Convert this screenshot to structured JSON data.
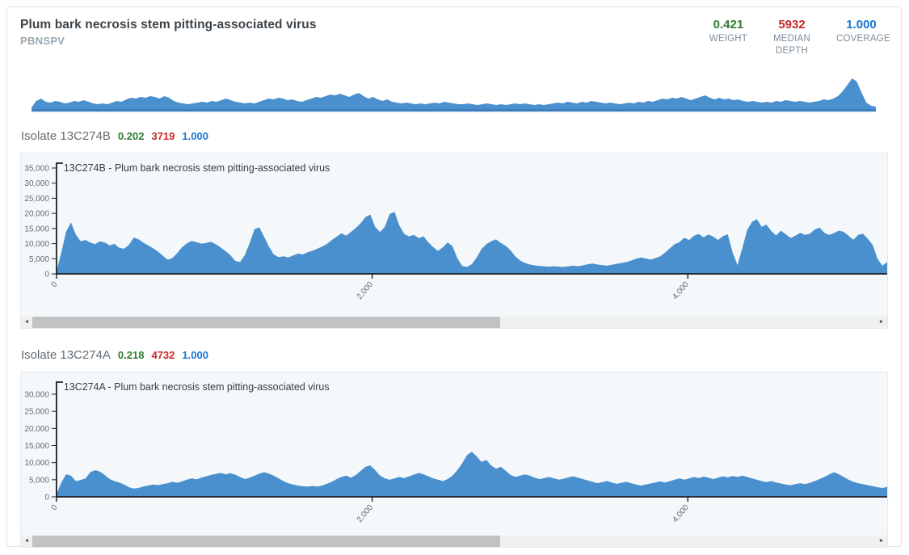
{
  "header": {
    "title": "Plum bark necrosis stem pitting-associated virus",
    "subtitle": "PBNSPV",
    "stats": [
      {
        "value": "0.421",
        "label": "WEIGHT"
      },
      {
        "value": "5932",
        "label": "MEDIAN DEPTH"
      },
      {
        "value": "1.000",
        "label": "COVERAGE"
      }
    ]
  },
  "isolates": [
    {
      "heading": "Isolate 13C274B",
      "weight": "0.202",
      "median_depth": "3719",
      "coverage": "1.000"
    },
    {
      "heading": "Isolate 13C274A",
      "weight": "0.218",
      "median_depth": "4732",
      "coverage": "1.000"
    }
  ],
  "icons": {
    "scroll_left": "◄",
    "scroll_right": "►"
  },
  "scrollbar": {
    "thumb_width_pct": 54
  },
  "colors": {
    "area_fill": "#4a90ce",
    "baseline_blue": "#3f7fbe",
    "axis": "#1a2127",
    "stat_green": "#2e7d32",
    "stat_red": "#c62828",
    "stat_blue": "#1976d2"
  },
  "chart_data": [
    {
      "id": "overview",
      "type": "area",
      "role": "whole-genome coverage minimap (unlabeled)",
      "x_range": [
        0,
        5263
      ],
      "units": "relative depth",
      "values": [
        2,
        10,
        13,
        9,
        8,
        10,
        9,
        7,
        8,
        10,
        9,
        11,
        9,
        7,
        6,
        7,
        6,
        8,
        10,
        9,
        12,
        14,
        13,
        15,
        14,
        16,
        15,
        13,
        16,
        14,
        10,
        8,
        7,
        6,
        7,
        8,
        9,
        8,
        10,
        9,
        11,
        13,
        11,
        9,
        8,
        7,
        8,
        7,
        9,
        11,
        13,
        12,
        14,
        13,
        11,
        12,
        10,
        9,
        11,
        13,
        15,
        14,
        16,
        18,
        17,
        19,
        17,
        15,
        18,
        20,
        16,
        13,
        15,
        12,
        10,
        12,
        9,
        8,
        7,
        8,
        7,
        6,
        7,
        6,
        7,
        8,
        7,
        9,
        8,
        7,
        6,
        6,
        7,
        6,
        5,
        6,
        7,
        6,
        5,
        6,
        5,
        6,
        7,
        6,
        7,
        6,
        5,
        6,
        5,
        6,
        7,
        8,
        7,
        9,
        8,
        7,
        9,
        8,
        10,
        9,
        8,
        7,
        8,
        7,
        6,
        7,
        8,
        7,
        9,
        8,
        10,
        9,
        11,
        13,
        12,
        14,
        13,
        15,
        13,
        11,
        13,
        15,
        17,
        14,
        12,
        14,
        12,
        13,
        11,
        12,
        10,
        9,
        10,
        9,
        8,
        9,
        8,
        10,
        9,
        11,
        10,
        9,
        10,
        9,
        8,
        9,
        10,
        12,
        11,
        13,
        16,
        22,
        30,
        38,
        34,
        20,
        8,
        4,
        3
      ]
    },
    {
      "id": "13C274B",
      "type": "area",
      "title": "13C274B - Plum bark necrosis stem pitting-associated virus",
      "xlabel": "",
      "ylabel": "",
      "x_range": [
        0,
        5263
      ],
      "x_ticks": [
        0,
        2000,
        4000
      ],
      "y_ticks": [
        0,
        5000,
        10000,
        15000,
        20000,
        25000,
        30000,
        35000
      ],
      "ylim": [
        0,
        35000
      ],
      "values": [
        800,
        7000,
        14000,
        17000,
        13000,
        10800,
        11200,
        10400,
        9800,
        10800,
        10400,
        9400,
        9900,
        8600,
        8300,
        9600,
        12000,
        11400,
        10300,
        9400,
        8500,
        7400,
        6000,
        4700,
        5200,
        6900,
        8800,
        10100,
        10900,
        10500,
        10000,
        10200,
        10600,
        9800,
        8700,
        7500,
        6200,
        4300,
        3900,
        6200,
        10200,
        14800,
        15400,
        12200,
        9000,
        6400,
        5500,
        5800,
        5400,
        6100,
        6700,
        6400,
        7100,
        7700,
        8300,
        9000,
        9900,
        11200,
        12300,
        13400,
        12600,
        13900,
        15200,
        16800,
        18800,
        19600,
        15500,
        13800,
        15600,
        19800,
        20500,
        16000,
        13200,
        12400,
        12900,
        11800,
        12400,
        10400,
        8900,
        7600,
        8800,
        10400,
        9200,
        5200,
        2600,
        2300,
        3200,
        5400,
        8200,
        9800,
        10800,
        11400,
        10200,
        9300,
        7800,
        5800,
        4400,
        3600,
        3100,
        2800,
        2600,
        2500,
        2400,
        2500,
        2400,
        2300,
        2500,
        2700,
        2500,
        2800,
        3200,
        3400,
        3100,
        2900,
        2700,
        3000,
        3300,
        3600,
        3900,
        4400,
        5000,
        5400,
        5100,
        4700,
        5200,
        5800,
        7000,
        8500,
        9800,
        10500,
        12000,
        11200,
        12600,
        13200,
        12100,
        13000,
        12300,
        11200,
        12500,
        13100,
        7000,
        2900,
        8500,
        14500,
        17200,
        18100,
        15600,
        16300,
        14200,
        12700,
        14300,
        13100,
        11900,
        12600,
        13600,
        12900,
        13300,
        14700,
        15300,
        13600,
        12900,
        13500,
        14300,
        13900,
        12600,
        11300,
        12900,
        13300,
        11600,
        9600,
        5000,
        2700,
        3900
      ]
    },
    {
      "id": "13C274A",
      "type": "area",
      "title": "13C274A - Plum bark necrosis stem pitting-associated virus",
      "xlabel": "",
      "ylabel": "",
      "x_range": [
        0,
        5263
      ],
      "x_ticks": [
        0,
        2000,
        4000
      ],
      "y_ticks": [
        0,
        5000,
        10000,
        15000,
        20000,
        25000,
        30000
      ],
      "ylim": [
        0,
        30000
      ],
      "values": [
        700,
        4200,
        6600,
        6200,
        4600,
        4900,
        5400,
        7200,
        7800,
        7400,
        6400,
        5200,
        4600,
        4200,
        3600,
        2800,
        2400,
        2600,
        3000,
        3300,
        3600,
        3400,
        3700,
        4000,
        4400,
        4100,
        4500,
        5000,
        5400,
        5100,
        5600,
        6000,
        6400,
        6700,
        7000,
        6600,
        6900,
        6500,
        5800,
        5200,
        5600,
        6200,
        6800,
        7200,
        6800,
        6200,
        5400,
        4600,
        4000,
        3600,
        3300,
        3100,
        3000,
        3200,
        3000,
        3300,
        3800,
        4400,
        5200,
        5800,
        6200,
        5600,
        6400,
        7600,
        8800,
        9200,
        7800,
        6200,
        5400,
        5000,
        5400,
        5800,
        5500,
        6000,
        6500,
        7000,
        6600,
        6000,
        5400,
        5000,
        4600,
        5200,
        6200,
        7800,
        9800,
        12200,
        13200,
        11800,
        10200,
        10800,
        9200,
        8200,
        8800,
        7600,
        6400,
        5800,
        6200,
        6600,
        6200,
        5600,
        5200,
        5500,
        5800,
        5400,
        5000,
        5300,
        5700,
        6000,
        5600,
        5200,
        4800,
        4400,
        4000,
        4300,
        4600,
        4200,
        3800,
        4100,
        4400,
        4000,
        3600,
        3300,
        3600,
        3900,
        4200,
        4500,
        4200,
        4600,
        5000,
        5400,
        5000,
        5400,
        5800,
        5500,
        5900,
        5600,
        5200,
        5600,
        6000,
        5700,
        6100,
        5800,
        6200,
        5800,
        5400,
        5000,
        4600,
        4300,
        4600,
        4200,
        3900,
        3600,
        3400,
        3700,
        4000,
        3700,
        4100,
        4600,
        5200,
        5800,
        6600,
        7200,
        6600,
        5800,
        5000,
        4400,
        4000,
        3700,
        3400,
        3100,
        2800,
        2600,
        2900
      ]
    }
  ]
}
